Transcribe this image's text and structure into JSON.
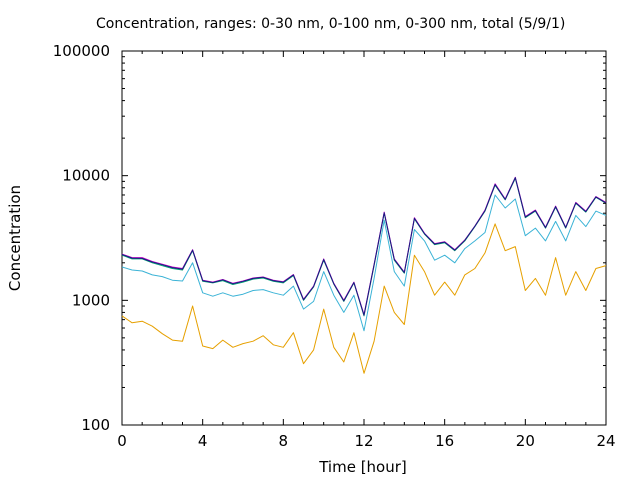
{
  "chart_data": {
    "type": "line",
    "title": "Concentration, ranges: 0-30 nm, 0-100 nm, 0-300 nm, total (5/9/1)",
    "xlabel": "Time [hour]",
    "ylabel": "Concentration",
    "xlim": [
      0,
      24
    ],
    "ylim": [
      100,
      100000
    ],
    "yscale": "log",
    "grid": false,
    "legend": "none",
    "x_ticks": [
      "0",
      "4",
      "8",
      "12",
      "16",
      "20",
      "24"
    ],
    "y_ticks": [
      "100",
      "1000",
      "10000",
      "100000"
    ],
    "x": [
      0,
      0.5,
      1,
      1.5,
      2,
      2.5,
      3,
      3.5,
      4,
      4.5,
      5,
      5.5,
      6,
      6.5,
      7,
      7.5,
      8,
      8.5,
      9,
      9.5,
      10,
      10.5,
      11,
      11.5,
      12,
      12.5,
      13,
      13.5,
      14,
      14.5,
      15,
      15.5,
      16,
      16.5,
      17,
      17.5,
      18,
      18.5,
      19,
      19.5,
      20,
      20.5,
      21,
      21.5,
      22,
      22.5,
      23,
      23.5,
      24
    ],
    "series": [
      {
        "color": "#e6a000",
        "values": [
          750,
          660,
          680,
          620,
          540,
          480,
          470,
          900,
          430,
          410,
          480,
          420,
          450,
          470,
          520,
          440,
          420,
          550,
          310,
          400,
          850,
          420,
          320,
          550,
          260,
          470,
          1300,
          800,
          640,
          2300,
          1700,
          1100,
          1400,
          1100,
          1600,
          1800,
          2400,
          4100,
          2500,
          2700,
          1200,
          1500,
          1100,
          2200,
          1100,
          1700,
          1200,
          1800,
          1900
        ]
      },
      {
        "color": "#3bb3d6",
        "values": [
          1850,
          1750,
          1720,
          1600,
          1550,
          1450,
          1430,
          2000,
          1150,
          1080,
          1150,
          1080,
          1120,
          1200,
          1220,
          1150,
          1100,
          1300,
          850,
          980,
          1700,
          1100,
          800,
          1100,
          570,
          1500,
          4400,
          1700,
          1300,
          3700,
          3000,
          2100,
          2300,
          2000,
          2600,
          3000,
          3500,
          7000,
          5500,
          6500,
          3300,
          3800,
          3000,
          4300,
          3000,
          4800,
          3900,
          5200,
          4800
        ]
      },
      {
        "color": "#009e73",
        "values": [
          2300,
          2150,
          2150,
          2000,
          1900,
          1800,
          1750,
          2500,
          1420,
          1380,
          1440,
          1340,
          1400,
          1480,
          1510,
          1420,
          1380,
          1580,
          1000,
          1280,
          2100,
          1350,
          980,
          1380,
          750,
          1900,
          5000,
          2100,
          1650,
          4500,
          3400,
          2800,
          2900,
          2500,
          3000,
          3900,
          5200,
          8400,
          6400,
          9500,
          4600,
          5200,
          3800,
          5600,
          3800,
          6000,
          5100,
          6700,
          6000
        ]
      },
      {
        "color": "#cc00cc",
        "values": [
          2350,
          2200,
          2200,
          2050,
          1950,
          1850,
          1800,
          2550,
          1450,
          1400,
          1470,
          1370,
          1430,
          1510,
          1540,
          1450,
          1410,
          1610,
          1020,
          1300,
          2150,
          1370,
          1000,
          1400,
          770,
          1950,
          5100,
          2150,
          1680,
          4600,
          3450,
          2850,
          2950,
          2550,
          3050,
          3950,
          5300,
          8600,
          6500,
          9700,
          4700,
          5300,
          3850,
          5700,
          3850,
          6100,
          5200,
          6800,
          6100
        ]
      },
      {
        "color": "#1a1a80",
        "values": [
          2330,
          2180,
          2170,
          2030,
          1930,
          1830,
          1780,
          2530,
          1440,
          1390,
          1460,
          1360,
          1420,
          1500,
          1530,
          1440,
          1400,
          1600,
          1010,
          1290,
          2130,
          1360,
          990,
          1390,
          760,
          1930,
          5050,
          2130,
          1670,
          4550,
          3430,
          2830,
          2930,
          2530,
          3030,
          3930,
          5250,
          8500,
          6450,
          9650,
          4650,
          5250,
          3830,
          5650,
          3830,
          6050,
          5150,
          6750,
          6050
        ]
      }
    ]
  }
}
